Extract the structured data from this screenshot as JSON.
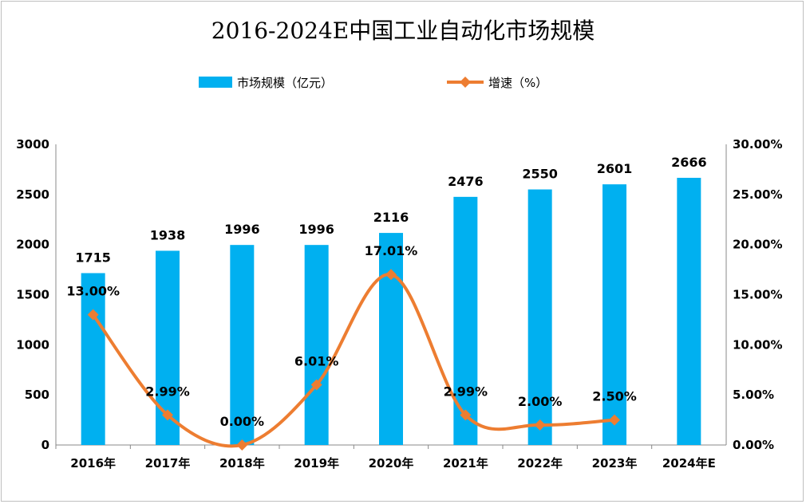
{
  "chart_data": {
    "type": "bar",
    "title": "2016-2024E中国工业自动化市场规模",
    "categories": [
      "2016年",
      "2017年",
      "2018年",
      "2019年",
      "2020年",
      "2021年",
      "2022年",
      "2023年",
      "2024年E"
    ],
    "series": [
      {
        "name": "市场规模（亿元）",
        "type": "bar",
        "axis": "left",
        "color": "#00B0F0",
        "values": [
          1715,
          1938,
          1996,
          1996,
          2116,
          2476,
          2550,
          2601,
          2666
        ],
        "labels": [
          "1715",
          "1938",
          "1996",
          "1996",
          "2116",
          "2476",
          "2550",
          "2601",
          "2666"
        ]
      },
      {
        "name": "增速（%）",
        "type": "line",
        "axis": "right",
        "color": "#ED7D31",
        "smooth": true,
        "marker": "diamond",
        "values": [
          13.0,
          2.99,
          0.0,
          6.01,
          17.01,
          2.99,
          2.0,
          2.5,
          null
        ],
        "labels": [
          "13.00%",
          "2.99%",
          "0.00%",
          "6.01%",
          "17.01%",
          "2.99%",
          "2.00%",
          "2.50%",
          ""
        ]
      }
    ],
    "ylim": [
      0,
      3000
    ],
    "yticks": [
      "0",
      "500",
      "1000",
      "1500",
      "2000",
      "2500",
      "3000"
    ],
    "y2lim": [
      0,
      30
    ],
    "y2ticks": [
      "0.00%",
      "5.00%",
      "10.00%",
      "15.00%",
      "20.00%",
      "25.00%",
      "30.00%"
    ],
    "legend": "top-center",
    "grid": false
  }
}
